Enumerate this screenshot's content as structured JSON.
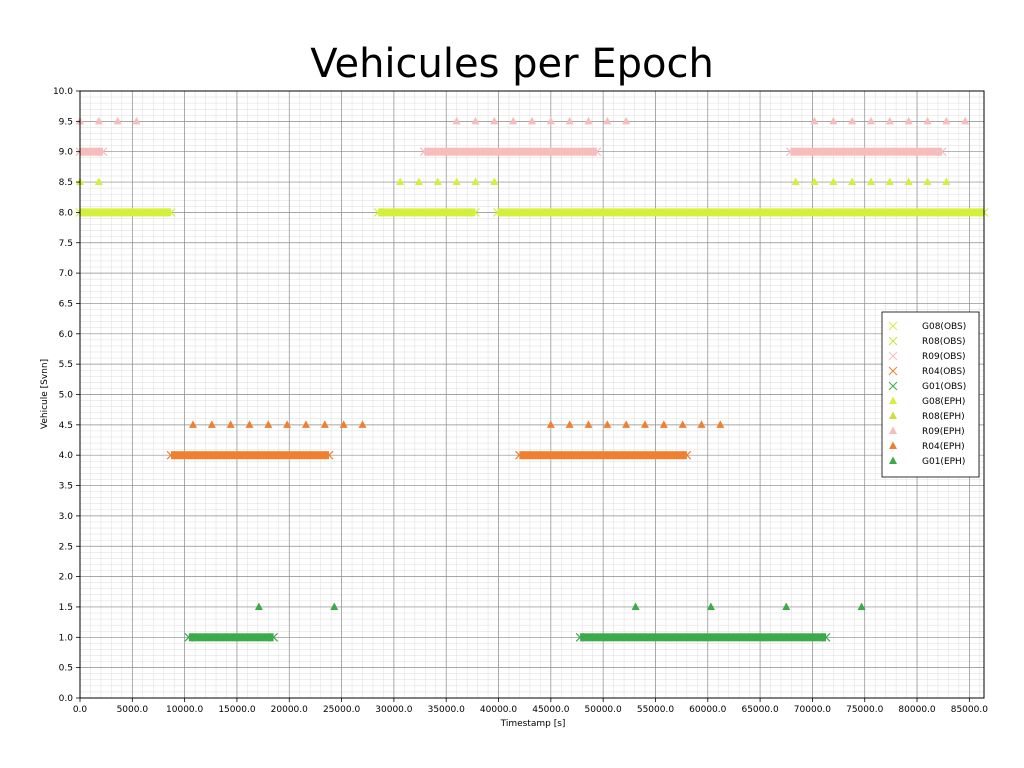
{
  "chart_data": {
    "type": "scatter",
    "title": "Vehicules per Epoch",
    "xlabel": "Timestamp [s]",
    "ylabel": "Vehicule [Svnn]",
    "xlim": [
      0,
      86400
    ],
    "ylim": [
      0,
      10
    ],
    "x_ticks": [
      0,
      5000,
      10000,
      15000,
      20000,
      25000,
      30000,
      35000,
      40000,
      45000,
      50000,
      55000,
      60000,
      65000,
      70000,
      75000,
      80000,
      85000
    ],
    "x_tick_labels": [
      "0.0",
      "5000.0",
      "10000.0",
      "15000.0",
      "20000.0",
      "25000.0",
      "30000.0",
      "35000.0",
      "40000.0",
      "45000.0",
      "50000.0",
      "55000.0",
      "60000.0",
      "65000.0",
      "70000.0",
      "75000.0",
      "80000.0",
      "85000.0"
    ],
    "y_ticks": [
      0,
      0.5,
      1,
      1.5,
      2,
      2.5,
      3,
      3.5,
      4,
      4.5,
      5,
      5.5,
      6,
      6.5,
      7,
      7.5,
      8,
      8.5,
      9,
      9.5,
      10
    ],
    "y_tick_labels": [
      "0.0",
      "0.5",
      "1.0",
      "1.5",
      "2.0",
      "2.5",
      "3.0",
      "3.5",
      "4.0",
      "4.5",
      "5.0",
      "5.5",
      "6.0",
      "6.5",
      "7.0",
      "7.5",
      "8.0",
      "8.5",
      "9.0",
      "9.5",
      "10.0"
    ],
    "grid": true,
    "minor_grid": true,
    "legend_position": "right",
    "series": [
      {
        "name": "G08(OBS)",
        "marker": "x",
        "color": "#d4f03c",
        "y": 8,
        "segments": [
          [
            0,
            8700
          ],
          [
            28500,
            37800
          ],
          [
            39900,
            86400
          ]
        ]
      },
      {
        "name": "R08(OBS)",
        "marker": "x",
        "color": "#cde03a",
        "y": 8,
        "segments": []
      },
      {
        "name": "R09(OBS)",
        "marker": "x",
        "color": "#f7bcbc",
        "y": 9,
        "segments": [
          [
            0,
            2200
          ],
          [
            32900,
            49400
          ],
          [
            67900,
            82400
          ]
        ]
      },
      {
        "name": "R04(OBS)",
        "marker": "x",
        "color": "#f08030",
        "y": 4,
        "segments": [
          [
            8700,
            23800
          ],
          [
            42000,
            58000
          ]
        ]
      },
      {
        "name": "G01(OBS)",
        "marker": "x",
        "color": "#3aaa4a",
        "y": 1,
        "segments": [
          [
            10400,
            18500
          ],
          [
            47800,
            71300
          ]
        ]
      },
      {
        "name": "G08(EPH)",
        "marker": "triangle",
        "color": "#d4f03c",
        "y": 8.5,
        "x": [
          0,
          1800,
          30600,
          32400,
          34200,
          36000,
          37800,
          39600,
          68400,
          70200,
          72000,
          73800,
          75600,
          77400,
          79200,
          81000,
          82800
        ]
      },
      {
        "name": "R08(EPH)",
        "marker": "triangle",
        "color": "#cde03a",
        "y": 8.5,
        "x": []
      },
      {
        "name": "R09(EPH)",
        "marker": "triangle",
        "color": "#f7bcbc",
        "y": 9.5,
        "x": [
          0,
          1800,
          3600,
          5400,
          36000,
          37800,
          39600,
          41400,
          43200,
          45000,
          46800,
          48600,
          50400,
          52200,
          70200,
          72000,
          73800,
          75600,
          77400,
          79200,
          81000,
          82800,
          84600
        ]
      },
      {
        "name": "R04(EPH)",
        "marker": "triangle",
        "color": "#f08030",
        "y": 4.5,
        "x": [
          10800,
          12600,
          14400,
          16200,
          18000,
          19800,
          21600,
          23400,
          25200,
          27000,
          45000,
          46800,
          48600,
          50400,
          52200,
          54000,
          55800,
          57600,
          59400,
          61200
        ]
      },
      {
        "name": "G01(EPH)",
        "marker": "triangle",
        "color": "#3aaa4a",
        "y": 1.5,
        "x": [
          17100,
          24300,
          53100,
          60300,
          67500,
          74700
        ]
      }
    ]
  }
}
